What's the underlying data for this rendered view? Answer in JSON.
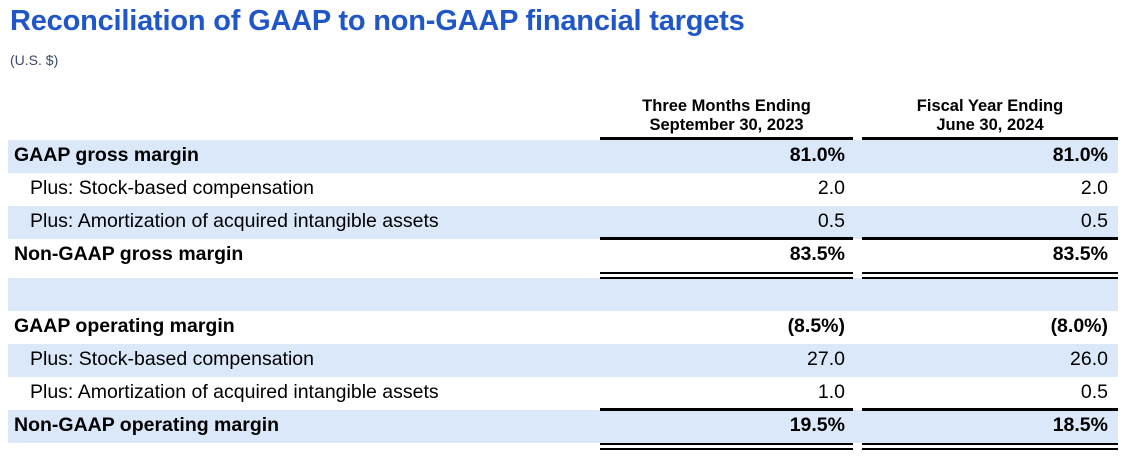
{
  "header": {
    "title": "Reconciliation of GAAP to non-GAAP financial targets",
    "subtitle": "(U.S. $)"
  },
  "colors": {
    "accent_blue": "#2057C8",
    "row_shade_blue": "#DBE8FA",
    "subtitle_gray": "#3A4A63",
    "text_black": "#000000"
  },
  "table": {
    "columns": [
      {
        "line1": "Three Months Ending",
        "line2": "September 30, 2023"
      },
      {
        "line1": "Fiscal Year Ending",
        "line2": "June 30, 2024"
      }
    ],
    "rows": [
      {
        "label": "GAAP gross margin",
        "v1": "81.0%",
        "v2": "81.0%",
        "style": "total",
        "shaded": true,
        "rule": "none"
      },
      {
        "label": "Plus: Stock-based compensation",
        "v1": "2.0",
        "v2": "2.0",
        "style": "plus",
        "shaded": false,
        "rule": "none"
      },
      {
        "label": "Plus: Amortization of acquired intangible assets",
        "v1": "0.5",
        "v2": "0.5",
        "style": "plus",
        "shaded": true,
        "rule": "single"
      },
      {
        "label": "Non-GAAP gross margin",
        "v1": "83.5%",
        "v2": "83.5%",
        "style": "total",
        "shaded": false,
        "rule": "double"
      },
      {
        "label": "",
        "v1": "",
        "v2": "",
        "style": "spacer",
        "shaded": true,
        "rule": "none"
      },
      {
        "label": "GAAP operating margin",
        "v1": "(8.5%)",
        "v2": "(8.0%)",
        "style": "total",
        "shaded": false,
        "rule": "none"
      },
      {
        "label": "Plus: Stock-based compensation",
        "v1": "27.0",
        "v2": "26.0",
        "style": "plus",
        "shaded": true,
        "rule": "none"
      },
      {
        "label": "Plus: Amortization of acquired intangible assets",
        "v1": "1.0",
        "v2": "0.5",
        "style": "plus",
        "shaded": false,
        "rule": "single"
      },
      {
        "label": "Non-GAAP operating margin",
        "v1": "19.5%",
        "v2": "18.5%",
        "style": "total",
        "shaded": true,
        "rule": "double"
      }
    ]
  }
}
